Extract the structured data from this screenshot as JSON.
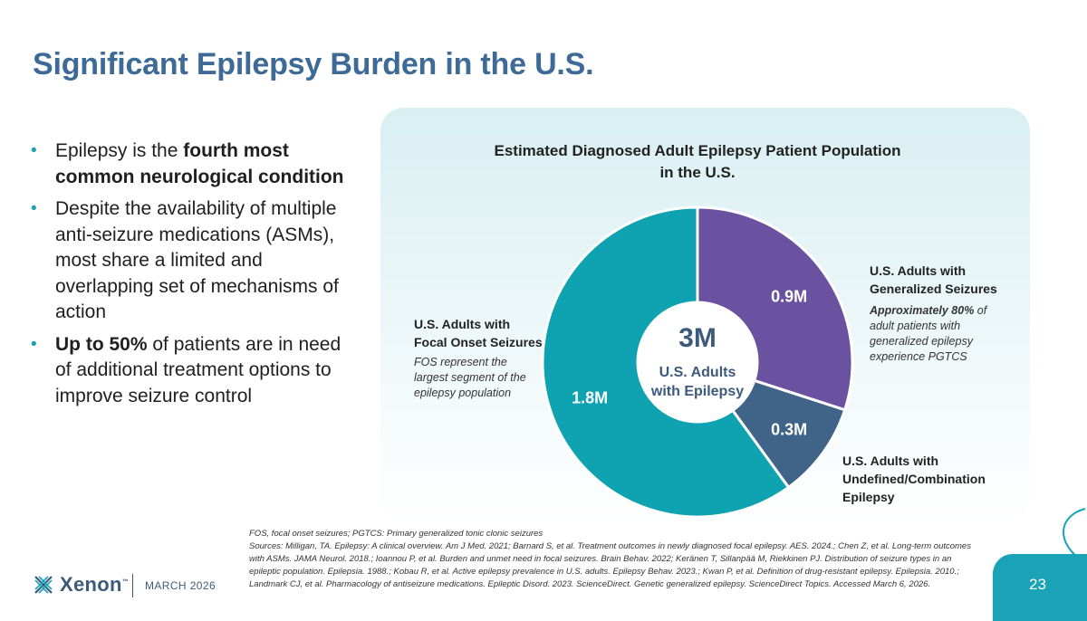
{
  "slide": {
    "title": "Significant Epilepsy Burden in the U.S.",
    "page_number": "23",
    "date": "MARCH 2026",
    "logo_text": "Xenon",
    "logo_tm": "™"
  },
  "bullets": [
    {
      "pre": "Epilepsy is the ",
      "bold": "fourth most common neurological condition",
      "post": ""
    },
    {
      "pre": "Despite the availability of multiple anti-seizure medications (ASMs), most share a limited and overlapping set of mechanisms of action",
      "bold": "",
      "post": ""
    },
    {
      "pre": "",
      "bold": "Up to 50%",
      "post": " of patients are in need of additional treatment options to improve seizure control"
    }
  ],
  "chart_data": {
    "type": "pie",
    "title": "Estimated Diagnosed Adult Epilepsy Patient Population in the U.S.",
    "title_line1": "Estimated Diagnosed Adult Epilepsy Patient Population",
    "title_line2": "in the U.S.",
    "center_value": "3M",
    "center_label_line1": "U.S. Adults",
    "center_label_line2": "with Epilepsy",
    "slices": [
      {
        "name": "U.S. Adults with Generalized Seizures",
        "value": 0.9,
        "label": "0.9M",
        "color": "#6a52a0"
      },
      {
        "name": "U.S. Adults with Undefined/Combination Epilepsy",
        "value": 0.3,
        "label": "0.3M",
        "color": "#3f6488"
      },
      {
        "name": "U.S. Adults with Focal Onset Seizures",
        "value": 1.8,
        "label": "1.8M",
        "color": "#0fa2b0"
      }
    ]
  },
  "annotations": {
    "generalized": {
      "head1": "U.S. Adults with",
      "head2": "Generalized Seizures",
      "note_bold": "Approximately 80%",
      "note_rest1": " of",
      "note_rest2": "adult patients with",
      "note_rest3": "generalized epilepsy",
      "note_rest4": "experience PGTCS"
    },
    "focal": {
      "head1": "U.S. Adults with",
      "head2": "Focal Onset Seizures",
      "note1": "FOS represent the",
      "note2": "largest segment of the",
      "note3": "epilepsy population"
    },
    "undefined": {
      "head1": "U.S. Adults with",
      "head2": "Undefined/Combination",
      "head3": "Epilepsy"
    }
  },
  "footnotes": {
    "abbrev": "FOS, focal onset seizures; PGTCS: Primary generalized tonic clonic seizures",
    "sources": "Sources: Milligan, TA. Epilepsy: A clinical overview. Am J Med. 2021; Barnard S, et al. Treatment outcomes in newly diagnosed focal epilepsy. AES. 2024.; Chen Z, et al. Long-term outcomes with ASMs. JAMA Neurol. 2018.; Ioannou P, et al. Burden and unmet need in focal seizures. Brain Behav. 2022; Keränen T, Sillanpää M, Riekkinen PJ. Distribution of seizure types in an epileptic population. Epilepsia. 1988.; Kobau R, et al. Active epilepsy prevalence in U.S. adults. Epilepsy Behav. 2023.; Kwan P, et al. Definition of drug-resistant epilepsy. Epilepsia. 2010.; Landmark CJ, et al. Pharmacology of antiseizure medications. Epileptic Disord. 2023. ScienceDirect. Genetic generalized epilepsy. ScienceDirect Topics. Accessed March 6, 2026."
  }
}
